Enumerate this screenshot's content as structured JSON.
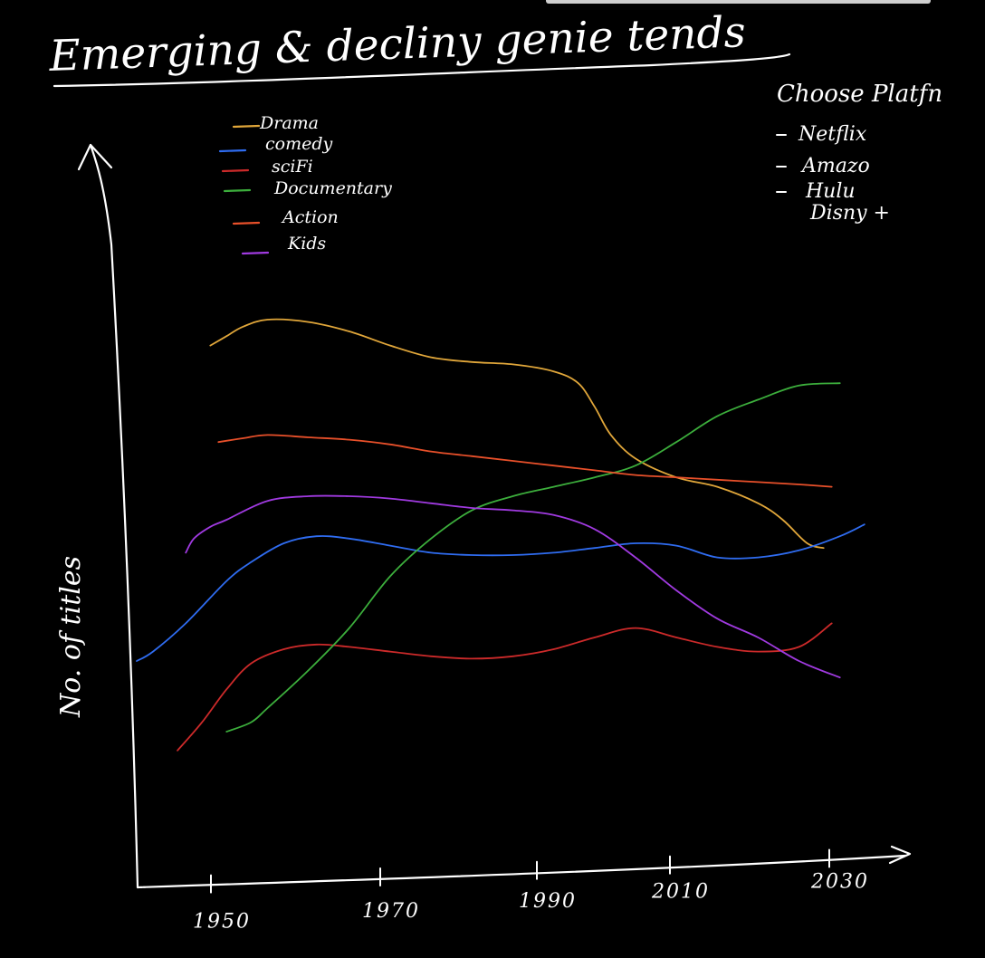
{
  "chart_data": {
    "type": "line",
    "title": "Emerging & decliny genie tends",
    "xlabel": "",
    "ylabel": "No. of titles",
    "x_ticks": [
      "1950",
      "1970",
      "1990",
      "2010",
      "2030"
    ],
    "xlim": [
      1945,
      2038
    ],
    "ylim": [
      0,
      100
    ],
    "grid": false,
    "legend_position": "top-left",
    "series": [
      {
        "name": "Drama",
        "color": "#e0a63a",
        "x": [
          1953,
          1955,
          1957,
          1960,
          1965,
          1970,
          1975,
          1980,
          1985,
          1990,
          1995,
          1998,
          2000,
          2002,
          2005,
          2010,
          2015,
          2020,
          2023,
          2026,
          2028
        ],
        "y": [
          92,
          94,
          96,
          97.5,
          97,
          95,
          92,
          89.5,
          88.5,
          88,
          86.5,
          84,
          79,
          73,
          68,
          64,
          62,
          58.5,
          55,
          50,
          49
        ]
      },
      {
        "name": "comedy",
        "color": "#2f6cf0",
        "x": [
          1944,
          1946,
          1950,
          1955,
          1958,
          1962,
          1966,
          1970,
          1975,
          1980,
          1985,
          1990,
          1995,
          2000,
          2005,
          2010,
          2015,
          2020,
          2025,
          2030,
          2033
        ],
        "y": [
          25,
          27,
          33,
          42,
          46,
          50,
          51.5,
          51,
          49.5,
          48,
          47.5,
          47.5,
          48,
          49,
          50,
          49.5,
          47,
          47,
          48.5,
          51.5,
          54
        ]
      },
      {
        "name": "sciFi",
        "color": "#cc2a2a",
        "x": [
          1949,
          1952,
          1955,
          1958,
          1962,
          1966,
          1970,
          1975,
          1980,
          1985,
          1990,
          1995,
          2000,
          2005,
          2010,
          2015,
          2020,
          2025,
          2029
        ],
        "y": [
          6,
          12,
          19,
          24.5,
          27.5,
          28.5,
          28,
          27,
          26,
          25.5,
          26,
          27.5,
          30,
          32,
          30,
          28,
          27,
          28,
          33
        ]
      },
      {
        "name": "Documentary",
        "color": "#3cae3c",
        "x": [
          1955,
          1958,
          1960,
          1965,
          1970,
          1975,
          1980,
          1985,
          1990,
          1995,
          2000,
          2005,
          2010,
          2015,
          2020,
          2025,
          2030
        ],
        "y": [
          10,
          12,
          15,
          23,
          32,
          43,
          51,
          57,
          60,
          62,
          64,
          66.5,
          71.5,
          77,
          80.5,
          83.5,
          84
        ]
      },
      {
        "name": "Action",
        "color": "#e8502a",
        "x": [
          1954,
          1957,
          1960,
          1965,
          1970,
          1975,
          1980,
          1985,
          1990,
          1995,
          2000,
          2005,
          2010,
          2015,
          2020,
          2025,
          2029
        ],
        "y": [
          71.5,
          72.3,
          73,
          72.5,
          72,
          71,
          69.5,
          68.5,
          67.5,
          66.5,
          65.5,
          64.5,
          64,
          63.5,
          63,
          62.5,
          62
        ]
      },
      {
        "name": "Kids",
        "color": "#a03ae0",
        "x": [
          1950,
          1951,
          1953,
          1955,
          1960,
          1965,
          1970,
          1975,
          1980,
          1985,
          1990,
          1995,
          2000,
          2005,
          2010,
          2015,
          2020,
          2025,
          2030
        ],
        "y": [
          48,
          51,
          53.5,
          55,
          59,
          60,
          60,
          59.5,
          58.5,
          57.5,
          57,
          56,
          53,
          47,
          40,
          34,
          30,
          25,
          21.5
        ]
      }
    ],
    "annotations": {
      "heading": "Choose Platfn",
      "options": [
        "Netflix",
        "Amazo",
        "Hulu",
        "Disny +"
      ]
    }
  }
}
